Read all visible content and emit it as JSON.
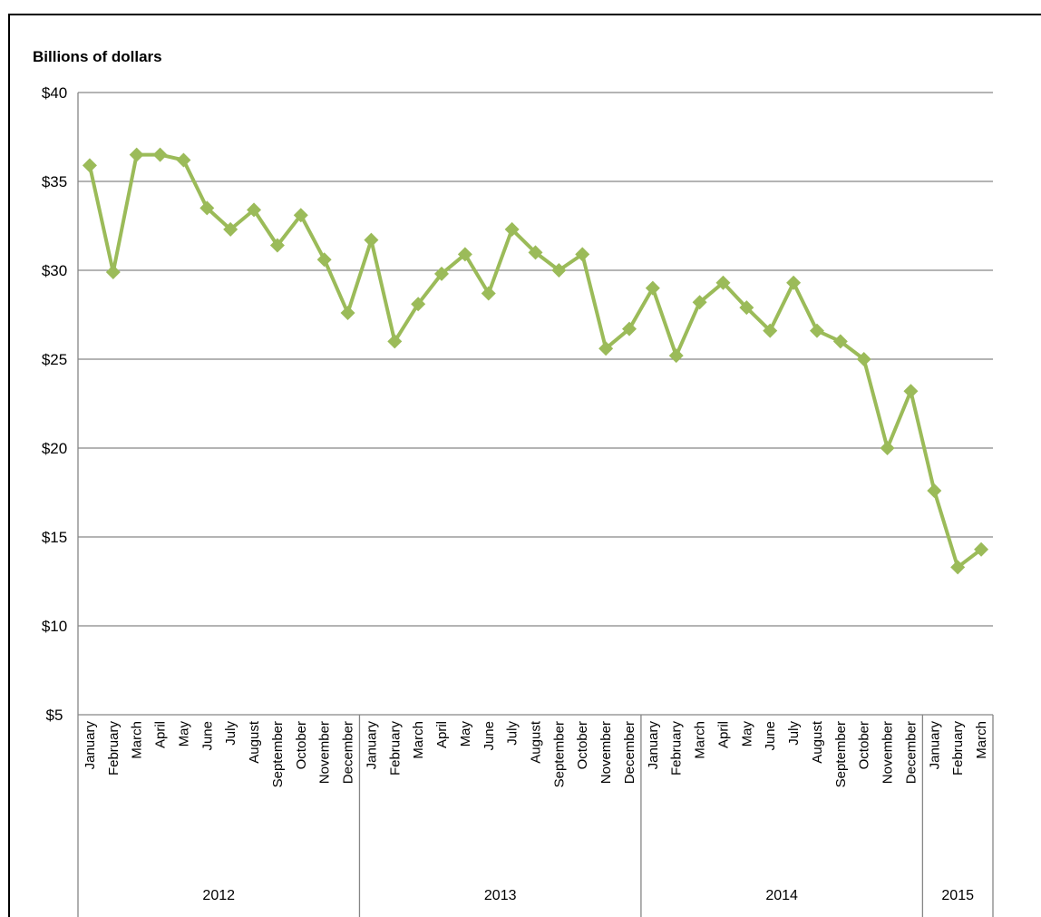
{
  "chart_data": {
    "type": "line",
    "title": "",
    "ylabel": "Billions of dollars",
    "xlabel": "",
    "ylim": [
      5,
      40
    ],
    "yticks": [
      5,
      10,
      15,
      20,
      25,
      30,
      35,
      40
    ],
    "ytick_labels": [
      "$5",
      "$10",
      "$15",
      "$20",
      "$25",
      "$30",
      "$35",
      "$40"
    ],
    "grid": true,
    "legend": "none",
    "color": "#9bbb59",
    "marker": "diamond",
    "years": [
      {
        "label": "2012",
        "months": 12
      },
      {
        "label": "2013",
        "months": 12
      },
      {
        "label": "2014",
        "months": 12
      },
      {
        "label": "2015",
        "months": 3
      }
    ],
    "categories": [
      "January",
      "February",
      "March",
      "April",
      "May",
      "June",
      "July",
      "August",
      "September",
      "October",
      "November",
      "December",
      "January",
      "February",
      "March",
      "April",
      "May",
      "June",
      "July",
      "August",
      "September",
      "October",
      "November",
      "December",
      "January",
      "February",
      "March",
      "April",
      "May",
      "June",
      "July",
      "August",
      "September",
      "October",
      "November",
      "December",
      "January",
      "February",
      "March"
    ],
    "series": [
      {
        "values": [
          35.9,
          29.9,
          36.5,
          36.5,
          36.2,
          33.5,
          32.3,
          33.4,
          31.4,
          33.1,
          30.6,
          27.6,
          31.7,
          26.0,
          28.1,
          29.8,
          30.9,
          28.7,
          32.3,
          31.0,
          30.0,
          30.9,
          25.6,
          26.7,
          29.0,
          25.2,
          28.2,
          29.3,
          27.9,
          26.6,
          29.3,
          26.6,
          26.0,
          25.0,
          20.0,
          23.2,
          17.6,
          13.3,
          14.3
        ]
      }
    ]
  }
}
